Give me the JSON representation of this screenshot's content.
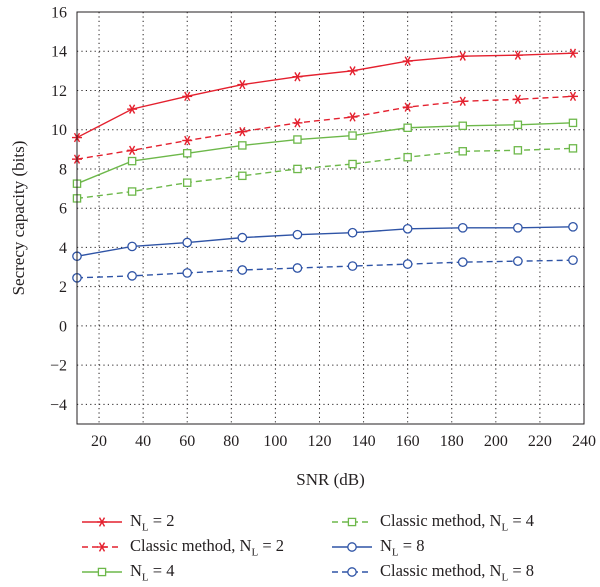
{
  "chart_data": {
    "type": "line",
    "title": "",
    "xlabel": "SNR (dB)",
    "ylabel": "Secrecy capacity (bits)",
    "xlim": [
      10,
      240
    ],
    "ylim": [
      -5,
      16
    ],
    "xticks": [
      20,
      40,
      60,
      80,
      100,
      120,
      140,
      160,
      180,
      200,
      220,
      240
    ],
    "yticks": [
      -4,
      -2,
      0,
      2,
      4,
      6,
      8,
      10,
      12,
      14,
      16
    ],
    "grid": true,
    "legend_position": "bottom",
    "x": [
      10,
      35,
      60,
      85,
      110,
      135,
      160,
      185,
      210,
      235
    ],
    "series": [
      {
        "name": "N_L = 2",
        "label_main": "N",
        "label_sub": "L",
        "label_rest": " = 2",
        "color": "#e4202e",
        "dash": "solid",
        "marker": "asterisk",
        "values": [
          9.6,
          11.05,
          11.7,
          12.3,
          12.7,
          13.0,
          13.5,
          13.75,
          13.8,
          13.9
        ]
      },
      {
        "name": "Classic method, N_L = 2",
        "label_main": "Classic method, N",
        "label_sub": "L",
        "label_rest": " = 2",
        "color": "#e4202e",
        "dash": "dashed",
        "marker": "asterisk",
        "values": [
          8.5,
          8.95,
          9.45,
          9.9,
          10.35,
          10.65,
          11.15,
          11.45,
          11.55,
          11.7
        ]
      },
      {
        "name": "N_L = 4",
        "label_main": "N",
        "label_sub": "L",
        "label_rest": " = 4",
        "color": "#6db84a",
        "dash": "solid",
        "marker": "square",
        "values": [
          7.25,
          8.4,
          8.8,
          9.2,
          9.5,
          9.7,
          10.1,
          10.2,
          10.25,
          10.35
        ]
      },
      {
        "name": "Classic method, N_L = 4",
        "label_main": "Classic method, N",
        "label_sub": "L",
        "label_rest": " = 4",
        "color": "#6db84a",
        "dash": "dashed",
        "marker": "square",
        "values": [
          6.5,
          6.85,
          7.3,
          7.65,
          8.0,
          8.25,
          8.6,
          8.9,
          8.95,
          9.05
        ]
      },
      {
        "name": "N_L = 8",
        "label_main": "N",
        "label_sub": "L",
        "label_rest": " = 8",
        "color": "#2f54a6",
        "dash": "solid",
        "marker": "circle",
        "values": [
          3.55,
          4.05,
          4.25,
          4.5,
          4.65,
          4.75,
          4.95,
          5.0,
          5.0,
          5.05
        ]
      },
      {
        "name": "Classic method, N_L = 8",
        "label_main": "Classic method, N",
        "label_sub": "L",
        "label_rest": " = 8",
        "color": "#2f54a6",
        "dash": "dashed",
        "marker": "circle",
        "values": [
          2.45,
          2.55,
          2.7,
          2.85,
          2.95,
          3.05,
          3.15,
          3.25,
          3.3,
          3.35
        ]
      }
    ]
  }
}
